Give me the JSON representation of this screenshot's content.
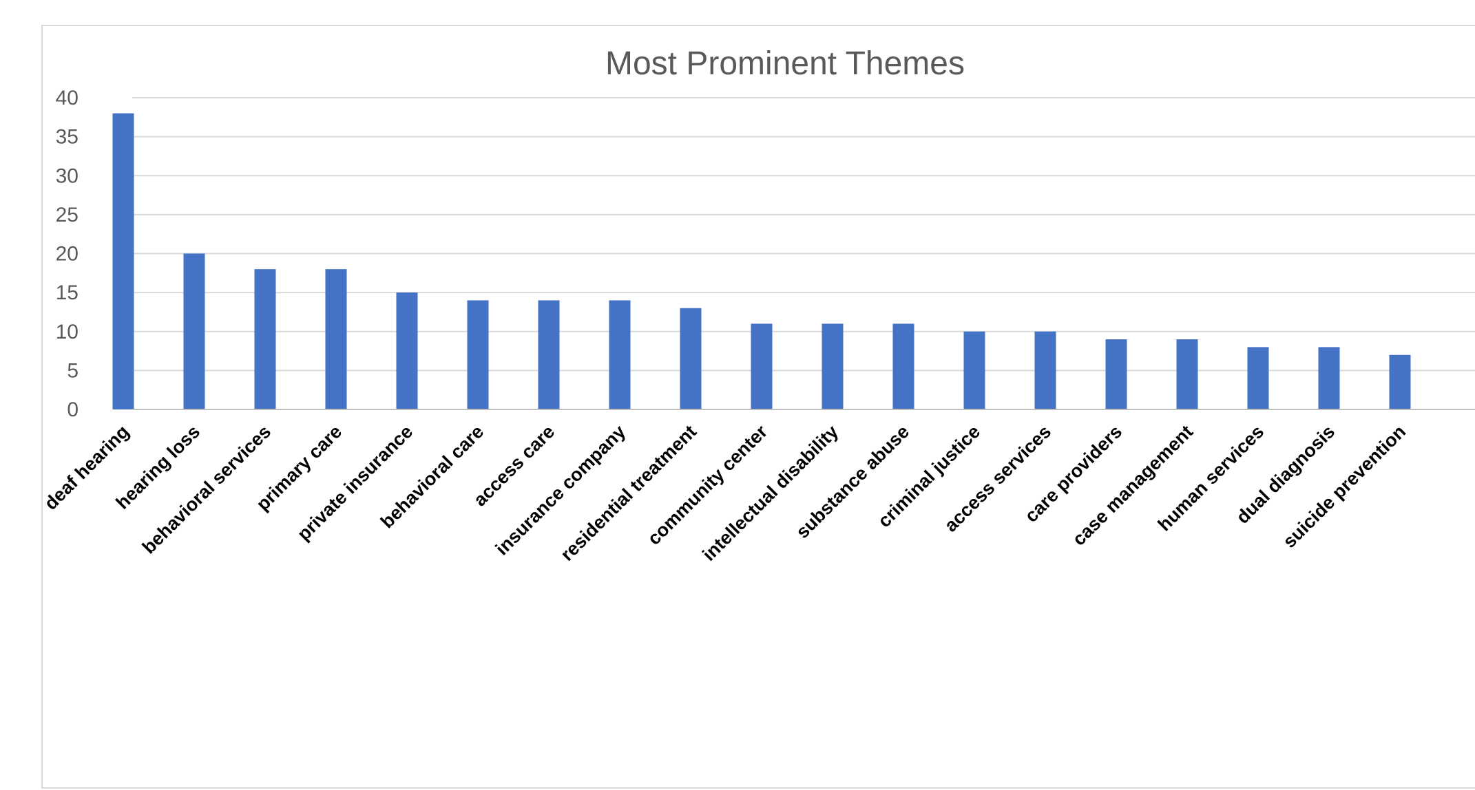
{
  "chart_data": {
    "type": "bar",
    "title": "Most Prominent Themes",
    "xlabel": "",
    "ylabel": "",
    "ylim": [
      0,
      40
    ],
    "yticks": [
      0,
      5,
      10,
      15,
      20,
      25,
      30,
      35,
      40
    ],
    "grid": true,
    "legend": "none",
    "bar_color": "#4472c4",
    "categories": [
      "deaf hearing",
      "hearing loss",
      "behavioral services",
      "primary care",
      "private insurance",
      "behavioral care",
      "access care",
      "insurance company",
      "residential treatment",
      "community center",
      "intellectual disability",
      "substance abuse",
      "criminal justice",
      "access services",
      "care providers",
      "case management",
      "human services",
      "dual diagnosis",
      "suicide prevention"
    ],
    "values": [
      38,
      20,
      18,
      18,
      15,
      14,
      14,
      14,
      13,
      11,
      11,
      11,
      10,
      10,
      9,
      9,
      8,
      8,
      7
    ]
  }
}
